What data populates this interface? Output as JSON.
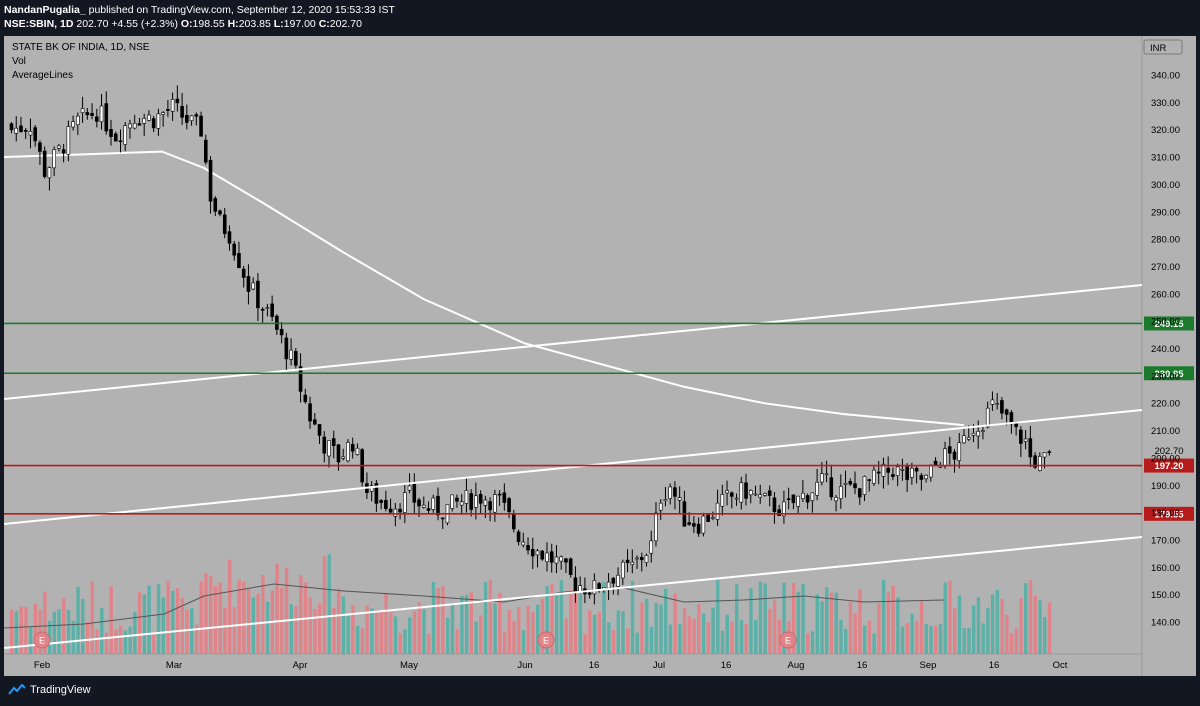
{
  "header": {
    "author": "NandanPugalia_",
    "published_text": "published on TradingView.com, September 12, 2020 15:53:33 IST",
    "symbol": "NSE:SBIN, 1D",
    "last": "202.70",
    "change": "+4.55 (+2.3%)",
    "o_label": "O:",
    "o": "198.55",
    "h_label": "H:",
    "h": "203.85",
    "l_label": "L:",
    "l": "197.00",
    "c_label": "C:",
    "c": "202.70"
  },
  "legend": {
    "title": "STATE BK OF INDIA, 1D, NSE",
    "vol": "Vol",
    "average_lines": "AverageLines"
  },
  "currency_badge": "INR",
  "price_axis": {
    "ticks": [
      "340.00",
      "330.00",
      "320.00",
      "310.00",
      "300.00",
      "290.00",
      "280.00",
      "270.00",
      "260.00",
      "250.00",
      "240.00",
      "230.00",
      "220.00",
      "210.00",
      "200.00",
      "190.00",
      "180.00",
      "170.00",
      "160.00",
      "150.00",
      "140.00"
    ]
  },
  "levels": [
    {
      "value": 249.15,
      "label": "249.15",
      "color": "#1b7a2b"
    },
    {
      "value": 230.95,
      "label": "230.95",
      "color": "#1b7a2b"
    },
    {
      "value": 197.2,
      "label": "197.20",
      "color": "#b71c1c"
    },
    {
      "value": 179.55,
      "label": "179.55",
      "color": "#b71c1c"
    }
  ],
  "last_price_label": "202.70",
  "time_axis": {
    "labels": [
      "Feb",
      "Mar",
      "Apr",
      "May",
      "Jun",
      "16",
      "Jul",
      "16",
      "Aug",
      "16",
      "Sep",
      "16",
      "Oct"
    ]
  },
  "earnings_markers": [
    "E",
    "E",
    "E"
  ],
  "footer": {
    "brand": "TradingView"
  },
  "chart_data": {
    "type": "candlestick",
    "title": "STATE BK OF INDIA, 1D, NSE",
    "ylim": [
      130,
      345
    ],
    "y_unit": "INR",
    "grid": false,
    "series": [
      {
        "name": "SBIN close (approx., by period)",
        "x": [
          "Feb",
          "Mar",
          "Apr",
          "May",
          "Jun",
          "Jul",
          "Aug",
          "Sep"
        ],
        "values": [
          320,
          305,
          185,
          175,
          190,
          195,
          198,
          202.7
        ]
      }
    ],
    "horizontal_levels": [
      249.15,
      230.95,
      197.2,
      179.55
    ],
    "colors": {
      "up": "#ffffff",
      "down": "#000000",
      "vol_up": "#5bb0a8",
      "vol_down": "#e0848a",
      "support": "#b71c1c",
      "resistance": "#1b7a2b",
      "trendline": "#ffffff",
      "background": "#b2b2b2"
    }
  }
}
